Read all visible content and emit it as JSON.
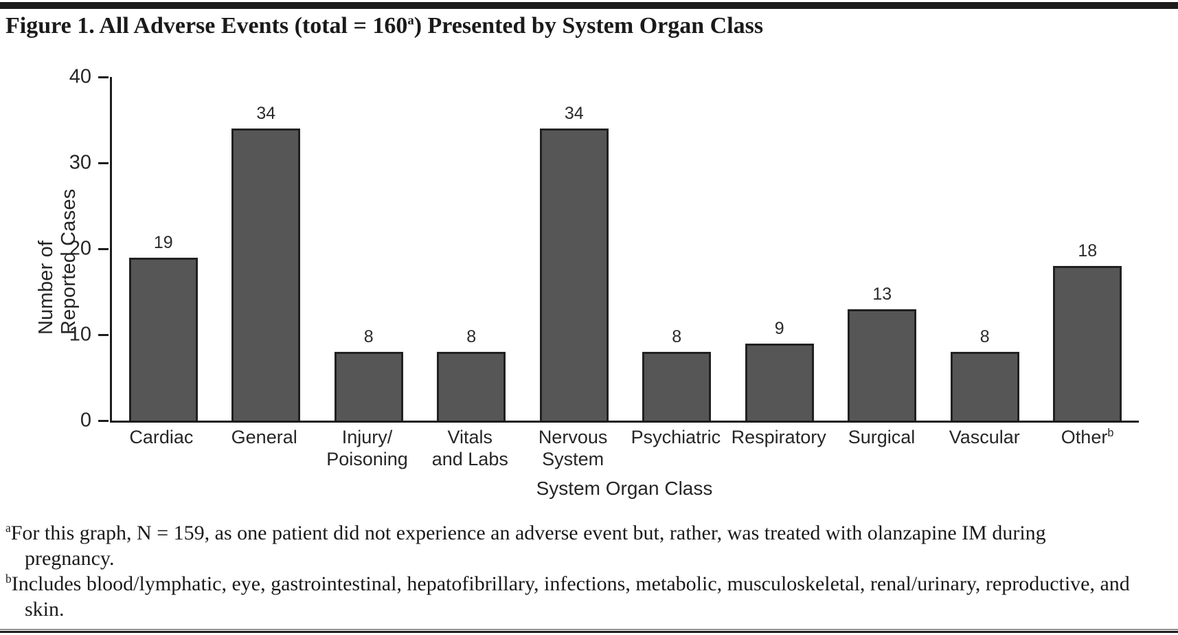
{
  "figure": {
    "title_prefix": "Figure 1. All Adverse Events (total = 160",
    "title_sup": "a",
    "title_suffix": ") Presented by System Organ Class"
  },
  "chart_data": {
    "type": "bar",
    "title": "Figure 1. All Adverse Events (total = 160a) Presented by System Organ Class",
    "xlabel": "System Organ Class",
    "ylabel": "Number of Reported Cases",
    "ylim": [
      0,
      40
    ],
    "yticks": [
      0,
      10,
      20,
      30,
      40
    ],
    "grid": false,
    "legend": "none",
    "bar_color": "#565656",
    "bar_border_color": "#212121",
    "categories": [
      {
        "label": "Cardiac"
      },
      {
        "label": "General"
      },
      {
        "label": "Injury/\nPoisoning"
      },
      {
        "label": "Vitals\nand Labs"
      },
      {
        "label": "Nervous\nSystem"
      },
      {
        "label": "Psychiatric"
      },
      {
        "label": "Respiratory"
      },
      {
        "label": "Surgical"
      },
      {
        "label": "Vascular"
      },
      {
        "label": "Other",
        "sup": "b"
      }
    ],
    "values": [
      19,
      34,
      8,
      8,
      34,
      8,
      9,
      13,
      8,
      18
    ]
  },
  "footnotes": [
    {
      "sup": "a",
      "text": "For this graph, N = 159, as one patient did not experience an adverse event but, rather, was treated with olanzapine IM during pregnancy."
    },
    {
      "sup": "b",
      "text": "Includes blood/lymphatic, eye, gastrointestinal, hepatofibrillary, infections, metabolic, musculoskeletal, renal/urinary, reproductive, and skin."
    }
  ]
}
